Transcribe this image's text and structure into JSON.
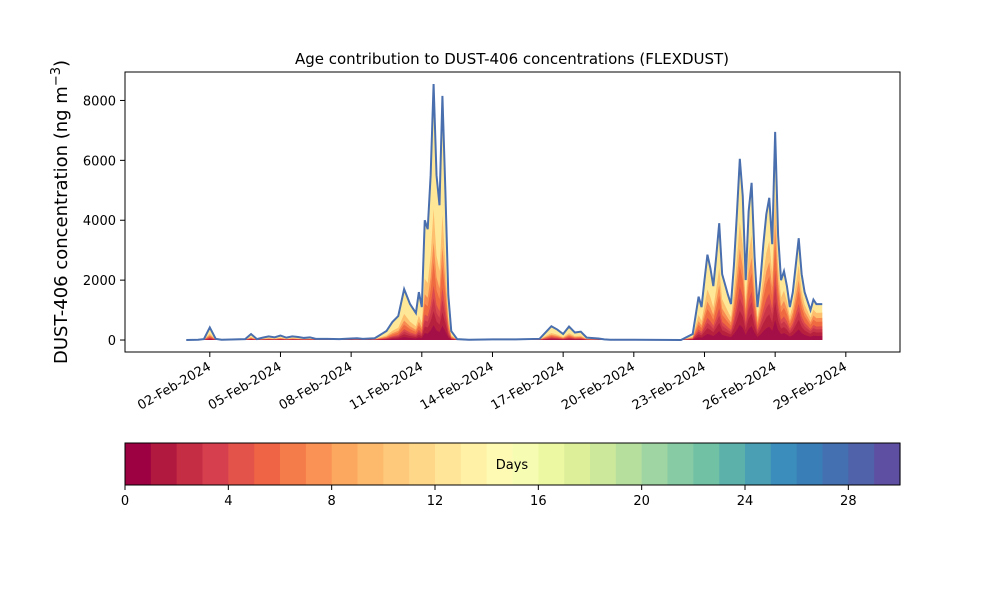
{
  "chart_data": {
    "type": "area",
    "title": "Age contribution to DUST-406 concentrations (FLEXDUST)",
    "xlabel": "",
    "ylabel": "DUST-406 concentration (ng m",
    "ylabel_unit_sup": "−3",
    "ylabel_close": ")",
    "ylim": [
      -400,
      8950
    ],
    "yticks": [
      0,
      2000,
      4000,
      6000,
      8000
    ],
    "xlim_days": [
      -1.6,
      31.3
    ],
    "x_tick_labels": [
      "02-Feb-2024",
      "05-Feb-2024",
      "08-Feb-2024",
      "11-Feb-2024",
      "14-Feb-2024",
      "17-Feb-2024",
      "20-Feb-2024",
      "23-Feb-2024",
      "26-Feb-2024",
      "29-Feb-2024"
    ],
    "total_series": {
      "name": "total",
      "color": "#4a6fae",
      "points": [
        [
          "01-Feb-2024 00:00",
          0
        ],
        [
          "01-Feb-2024 12:00",
          10
        ],
        [
          "01-Feb-2024 18:00",
          30
        ],
        [
          "02-Feb-2024 00:00",
          420
        ],
        [
          "02-Feb-2024 06:00",
          40
        ],
        [
          "02-Feb-2024 12:00",
          10
        ],
        [
          "03-Feb-2024 12:00",
          30
        ],
        [
          "03-Feb-2024 18:00",
          200
        ],
        [
          "04-Feb-2024 00:00",
          30
        ],
        [
          "04-Feb-2024 06:00",
          80
        ],
        [
          "04-Feb-2024 12:00",
          120
        ],
        [
          "04-Feb-2024 18:00",
          90
        ],
        [
          "05-Feb-2024 00:00",
          150
        ],
        [
          "05-Feb-2024 06:00",
          80
        ],
        [
          "05-Feb-2024 12:00",
          120
        ],
        [
          "05-Feb-2024 18:00",
          100
        ],
        [
          "06-Feb-2024 00:00",
          70
        ],
        [
          "06-Feb-2024 06:00",
          90
        ],
        [
          "06-Feb-2024 12:00",
          40
        ],
        [
          "07-Feb-2024 00:00",
          40
        ],
        [
          "07-Feb-2024 12:00",
          30
        ],
        [
          "08-Feb-2024 00:00",
          50
        ],
        [
          "08-Feb-2024 06:00",
          60
        ],
        [
          "08-Feb-2024 12:00",
          40
        ],
        [
          "09-Feb-2024 00:00",
          60
        ],
        [
          "09-Feb-2024 12:00",
          300
        ],
        [
          "09-Feb-2024 18:00",
          600
        ],
        [
          "10-Feb-2024 00:00",
          800
        ],
        [
          "10-Feb-2024 06:00",
          1700
        ],
        [
          "10-Feb-2024 12:00",
          1200
        ],
        [
          "10-Feb-2024 18:00",
          900
        ],
        [
          "10-Feb-2024 21:00",
          1600
        ],
        [
          "11-Feb-2024 00:00",
          1100
        ],
        [
          "11-Feb-2024 03:00",
          4000
        ],
        [
          "11-Feb-2024 06:00",
          3700
        ],
        [
          "11-Feb-2024 09:00",
          5500
        ],
        [
          "11-Feb-2024 12:00",
          8550
        ],
        [
          "11-Feb-2024 15:00",
          5500
        ],
        [
          "11-Feb-2024 18:00",
          4500
        ],
        [
          "11-Feb-2024 21:00",
          8150
        ],
        [
          "12-Feb-2024 00:00",
          5000
        ],
        [
          "12-Feb-2024 03:00",
          1500
        ],
        [
          "12-Feb-2024 06:00",
          300
        ],
        [
          "12-Feb-2024 12:00",
          30
        ],
        [
          "13-Feb-2024 00:00",
          10
        ],
        [
          "14-Feb-2024 00:00",
          20
        ],
        [
          "15-Feb-2024 00:00",
          20
        ],
        [
          "16-Feb-2024 00:00",
          40
        ],
        [
          "16-Feb-2024 12:00",
          460
        ],
        [
          "16-Feb-2024 18:00",
          350
        ],
        [
          "17-Feb-2024 00:00",
          200
        ],
        [
          "17-Feb-2024 06:00",
          450
        ],
        [
          "17-Feb-2024 12:00",
          250
        ],
        [
          "17-Feb-2024 18:00",
          280
        ],
        [
          "18-Feb-2024 00:00",
          80
        ],
        [
          "18-Feb-2024 12:00",
          50
        ],
        [
          "18-Feb-2024 18:00",
          20
        ],
        [
          "19-Feb-2024 00:00",
          10
        ],
        [
          "20-Feb-2024 00:00",
          10
        ],
        [
          "22-Feb-2024 00:00",
          0
        ],
        [
          "22-Feb-2024 12:00",
          200
        ],
        [
          "22-Feb-2024 18:00",
          1450
        ],
        [
          "22-Feb-2024 21:00",
          1100
        ],
        [
          "23-Feb-2024 00:00",
          2000
        ],
        [
          "23-Feb-2024 03:00",
          2850
        ],
        [
          "23-Feb-2024 06:00",
          2400
        ],
        [
          "23-Feb-2024 09:00",
          1800
        ],
        [
          "23-Feb-2024 12:00",
          2800
        ],
        [
          "23-Feb-2024 15:00",
          3900
        ],
        [
          "23-Feb-2024 18:00",
          2200
        ],
        [
          "24-Feb-2024 00:00",
          1500
        ],
        [
          "24-Feb-2024 03:00",
          1200
        ],
        [
          "24-Feb-2024 06:00",
          2500
        ],
        [
          "24-Feb-2024 09:00",
          4200
        ],
        [
          "24-Feb-2024 12:00",
          6050
        ],
        [
          "24-Feb-2024 15:00",
          4800
        ],
        [
          "24-Feb-2024 18:00",
          2000
        ],
        [
          "24-Feb-2024 21:00",
          4300
        ],
        [
          "25-Feb-2024 00:00",
          5250
        ],
        [
          "25-Feb-2024 03:00",
          2800
        ],
        [
          "25-Feb-2024 06:00",
          1100
        ],
        [
          "25-Feb-2024 09:00",
          2000
        ],
        [
          "25-Feb-2024 12:00",
          3200
        ],
        [
          "25-Feb-2024 15:00",
          4200
        ],
        [
          "25-Feb-2024 18:00",
          4750
        ],
        [
          "25-Feb-2024 21:00",
          3200
        ],
        [
          "26-Feb-2024 00:00",
          6950
        ],
        [
          "26-Feb-2024 03:00",
          3500
        ],
        [
          "26-Feb-2024 06:00",
          2000
        ],
        [
          "26-Feb-2024 09:00",
          2300
        ],
        [
          "26-Feb-2024 12:00",
          1800
        ],
        [
          "26-Feb-2024 15:00",
          1100
        ],
        [
          "26-Feb-2024 18:00",
          1600
        ],
        [
          "27-Feb-2024 00:00",
          3400
        ],
        [
          "27-Feb-2024 03:00",
          2200
        ],
        [
          "27-Feb-2024 06:00",
          1600
        ],
        [
          "27-Feb-2024 09:00",
          1300
        ],
        [
          "27-Feb-2024 12:00",
          1000
        ],
        [
          "27-Feb-2024 15:00",
          1350
        ],
        [
          "27-Feb-2024 18:00",
          1200
        ],
        [
          "28-Feb-2024 00:00",
          1200
        ]
      ]
    },
    "age_layers": [
      {
        "days": [
          0,
          1
        ],
        "color": "#a50f47"
      },
      {
        "days": [
          1,
          2
        ],
        "color": "#b8213e"
      },
      {
        "days": [
          2,
          3
        ],
        "color": "#cb3548"
      },
      {
        "days": [
          3,
          4
        ],
        "color": "#dc4a4d"
      },
      {
        "days": [
          4,
          6
        ],
        "color": "#ef6a40"
      },
      {
        "days": [
          6,
          8
        ],
        "color": "#f88b52"
      },
      {
        "days": [
          8,
          12
        ],
        "color": "#fdbf6e"
      },
      {
        "days": [
          12,
          30
        ],
        "color": "#fee898"
      }
    ],
    "colorbar": {
      "label": "Days",
      "range": [
        0,
        30
      ],
      "ticks": [
        0,
        4,
        8,
        12,
        16,
        20,
        24,
        28
      ],
      "colors": [
        "#9e0142",
        "#b2193f",
        "#c52d44",
        "#d6404e",
        "#e3534a",
        "#ee6445",
        "#f47b4a",
        "#f99254",
        "#fca85e",
        "#fdba6c",
        "#fec97b",
        "#fed789",
        "#fee597",
        "#fff1a6",
        "#fefab4",
        "#f7fcb3",
        "#edf8a3",
        "#deef9a",
        "#cbe89b",
        "#b6df9e",
        "#9fd5a3",
        "#86cba4",
        "#71c1a4",
        "#5db1ab",
        "#4a9fb4",
        "#3b8dbb",
        "#3a7eb8",
        "#4470b1",
        "#5062a9",
        "#5e4fa2"
      ]
    }
  }
}
